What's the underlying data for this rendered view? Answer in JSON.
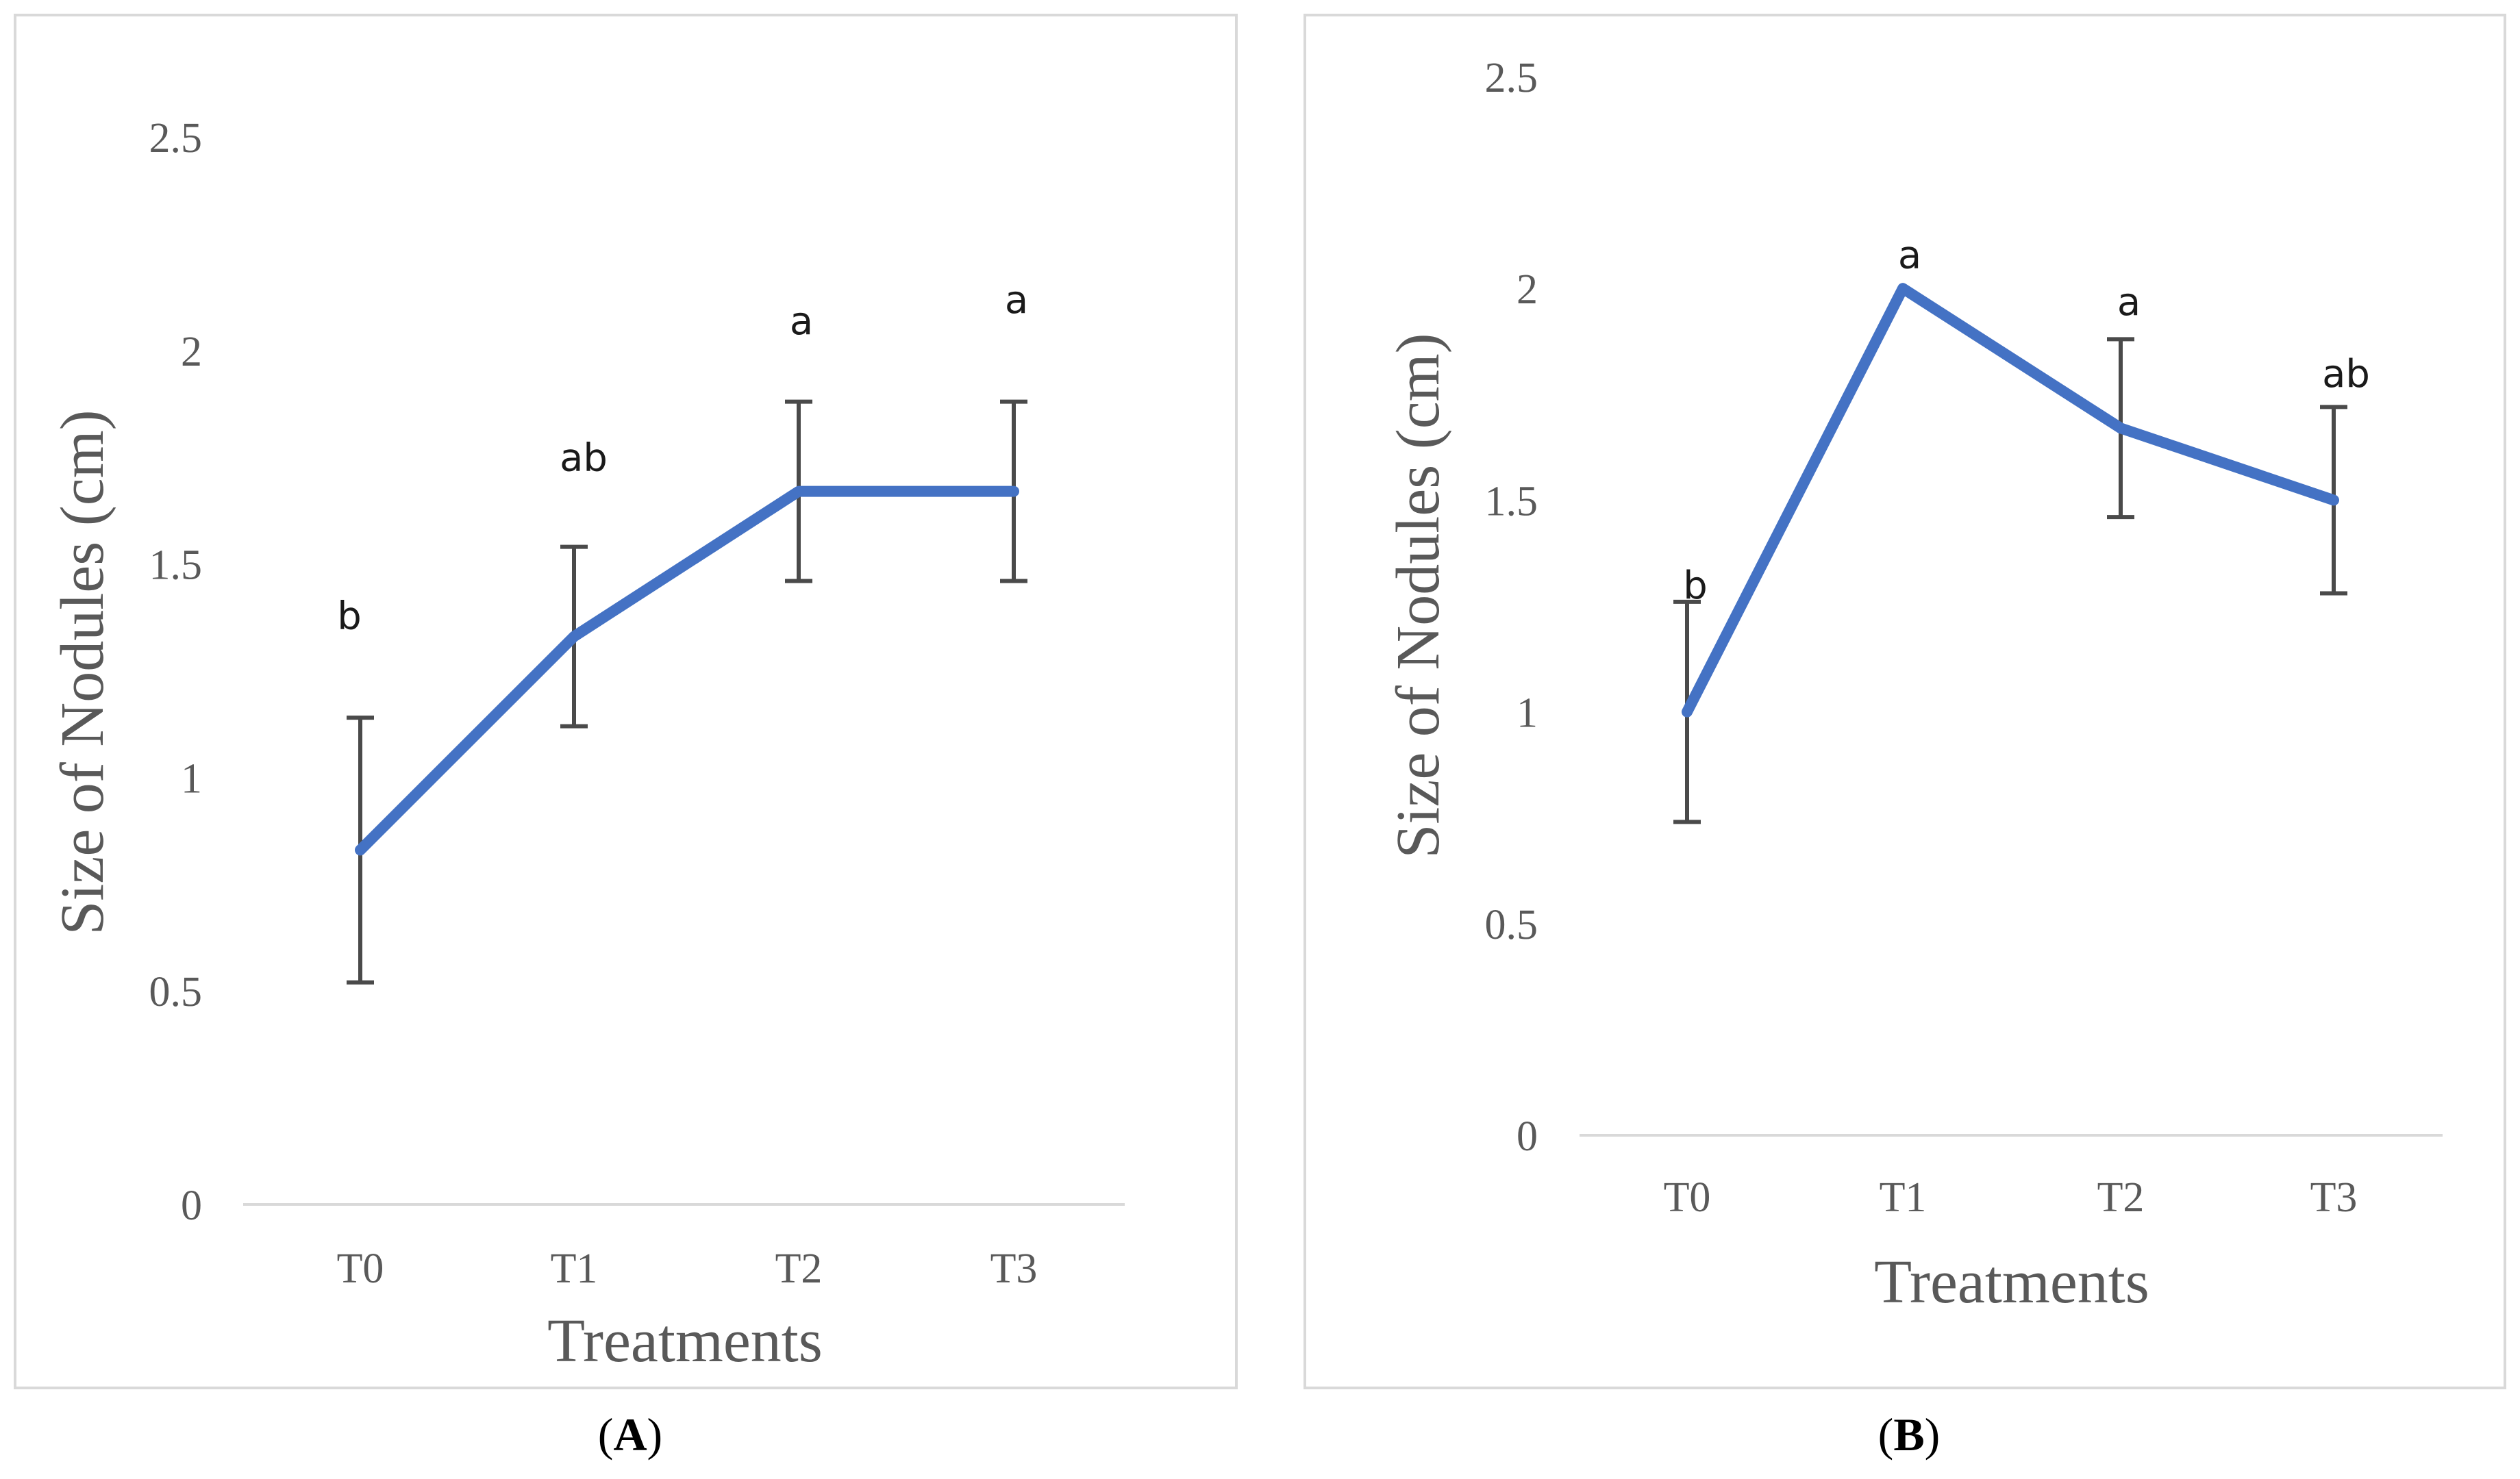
{
  "chart_data": [
    {
      "type": "line",
      "panel_label": "A",
      "title": "",
      "categories": [
        "T0",
        "T1",
        "T2",
        "T3"
      ],
      "values": [
        0.83,
        1.33,
        1.67,
        1.67
      ],
      "error": [
        0.31,
        0.21,
        0.21,
        0.21
      ],
      "significance": [
        "b",
        "ab",
        "a",
        "a"
      ],
      "significance_y": [
        1.38,
        1.75,
        2.07,
        2.12
      ],
      "xlabel": "Treatments",
      "ylabel": "Size of  Nodules (cm)",
      "ylim": [
        0,
        2.5
      ],
      "yticks": [
        "0",
        "0.5",
        "1",
        "1.5",
        "2",
        "2.5"
      ],
      "line_color": "#4472C4",
      "grid": false
    },
    {
      "type": "line",
      "panel_label": "B",
      "title": "",
      "categories": [
        "T0",
        "T1",
        "T2",
        "T3"
      ],
      "values": [
        1.0,
        2.0,
        1.67,
        1.5
      ],
      "error": [
        0.26,
        0.0,
        0.21,
        0.22
      ],
      "significance": [
        "b",
        "a",
        "a",
        "ab"
      ],
      "significance_y": [
        1.3,
        2.08,
        1.97,
        1.8
      ],
      "xlabel": "Treatments",
      "ylabel": "Size of Nodules (cm)",
      "ylim": [
        0,
        2.5
      ],
      "yticks": [
        "0",
        "0.5",
        "1",
        "1.5",
        "2",
        "2.5"
      ],
      "line_color": "#4472C4",
      "grid": false
    }
  ]
}
